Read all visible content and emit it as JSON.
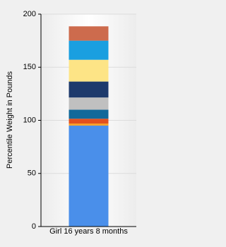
{
  "chart_data": {
    "type": "stacked_bar",
    "ylabel": "Percentile Weight in Pounds",
    "categories": [
      "Girl 16 years 8 months"
    ],
    "series": [
      {
        "color": "#4a8fea",
        "values": [
          95
        ]
      },
      {
        "color": "#f7a12c",
        "values": [
          2
        ]
      },
      {
        "color": "#e2501e",
        "values": [
          4.5
        ]
      },
      {
        "color": "#11699a",
        "values": [
          8.5
        ]
      },
      {
        "color": "#c0c0c0",
        "values": [
          11.5
        ]
      },
      {
        "color": "#1e3a6c",
        "values": [
          15
        ]
      },
      {
        "color": "#fde486",
        "values": [
          20.5
        ]
      },
      {
        "color": "#1a9fe0",
        "values": [
          18
        ]
      },
      {
        "color": "#cd6b4d",
        "values": [
          13.5
        ]
      }
    ],
    "ylim": [
      0,
      200
    ],
    "yticks": [
      0,
      50,
      100,
      150,
      200
    ],
    "grid": true
  }
}
